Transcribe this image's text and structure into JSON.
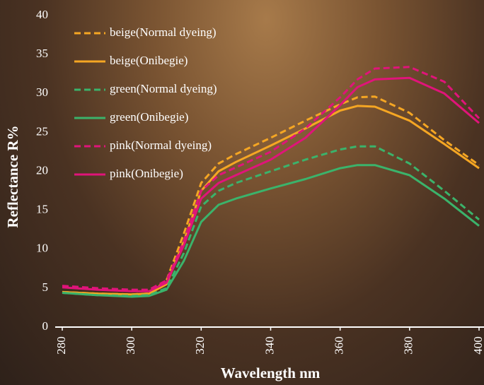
{
  "chart_data": {
    "type": "line",
    "x_label": "Wavelength nm",
    "y_label": "Reflectance R%",
    "x": [
      280,
      290,
      300,
      305,
      310,
      315,
      320,
      325,
      330,
      340,
      350,
      360,
      365,
      370,
      380,
      390,
      400
    ],
    "series": [
      {
        "name": "beige(Normal dyeing)",
        "color": "#f5a623",
        "dashed": true,
        "values": [
          4.5,
          4.3,
          4.2,
          4.3,
          6,
          12,
          18.5,
          21,
          22.2,
          24.3,
          26.5,
          28.6,
          29.5,
          29.6,
          27.5,
          24,
          20.8
        ]
      },
      {
        "name": "beige(Onibegie)",
        "color": "#f5a623",
        "dashed": false,
        "values": [
          4.5,
          4.3,
          4.2,
          4.3,
          5.5,
          11,
          17.5,
          20,
          21.2,
          23.3,
          25.5,
          27.8,
          28.4,
          28.3,
          26.5,
          23.5,
          20.4
        ]
      },
      {
        "name": "green(Normal dyeing)",
        "color": "#3bb36b",
        "dashed": true,
        "values": [
          4.4,
          4.1,
          4,
          4.1,
          5,
          9.5,
          15.5,
          17.5,
          18.5,
          20,
          21.5,
          22.8,
          23.2,
          23.2,
          21,
          17.5,
          13.8
        ]
      },
      {
        "name": "green(Onibegie)",
        "color": "#3bb36b",
        "dashed": false,
        "values": [
          4.4,
          4.1,
          3.9,
          4,
          4.8,
          8.5,
          13.5,
          15.7,
          16.5,
          17.8,
          19,
          20.4,
          20.8,
          20.8,
          19.5,
          16.5,
          13
        ]
      },
      {
        "name": "pink(Normal dyeing)",
        "color": "#e0147a",
        "dashed": true,
        "values": [
          5.3,
          5,
          4.8,
          4.8,
          6,
          11,
          17.5,
          19.5,
          20.5,
          22.5,
          25.5,
          29.5,
          31.8,
          33.2,
          33.4,
          31.5,
          26.8
        ]
      },
      {
        "name": "pink(Onibegie)",
        "color": "#e0147a",
        "dashed": false,
        "values": [
          5.1,
          4.8,
          4.6,
          4.6,
          5.7,
          10.5,
          16.5,
          18.5,
          19.5,
          21.5,
          24.3,
          28.5,
          30.8,
          31.8,
          32,
          30,
          26.2
        ]
      }
    ],
    "xlim": [
      280,
      400
    ],
    "xticks": [
      280,
      300,
      320,
      340,
      360,
      380,
      400
    ],
    "ylim": [
      0,
      40
    ],
    "yticks": [
      0,
      5,
      10,
      15,
      20,
      25,
      30,
      35,
      40
    ],
    "legend": "upper-left"
  }
}
